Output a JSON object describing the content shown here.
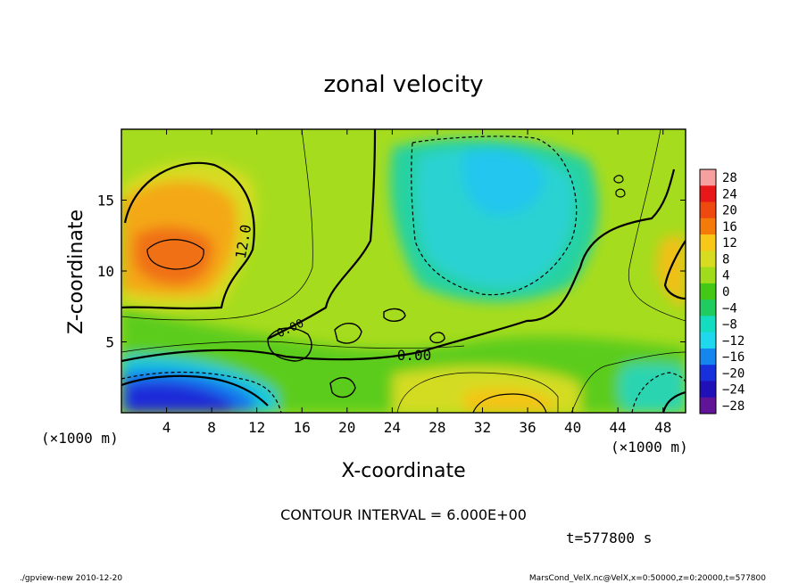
{
  "chart_data": {
    "type": "heatmap",
    "title": "zonal velocity",
    "xlabel": "X-coordinate",
    "ylabel": "Z-coordinate",
    "x_unit_label": "(×1000 m)",
    "y_unit_label": "(×1000 m)",
    "xlim": [
      0,
      50
    ],
    "ylim": [
      0,
      20
    ],
    "x_ticks": [
      4,
      8,
      12,
      16,
      20,
      24,
      28,
      32,
      36,
      40,
      44,
      48
    ],
    "y_ticks": [
      5,
      10,
      15
    ],
    "colorbar": {
      "levels": [
        28,
        24,
        20,
        16,
        12,
        8,
        4,
        0,
        -4,
        -8,
        -12,
        -16,
        -20,
        -24,
        -28
      ],
      "labels": [
        "28",
        "24",
        "20",
        "16",
        "12",
        "8",
        "4",
        "0",
        "−4",
        "−8",
        "−12",
        "−16",
        "−20",
        "−24",
        "−28"
      ],
      "colors": [
        "#f7a0a0",
        "#e81818",
        "#ee4a10",
        "#f47a0a",
        "#f8c818",
        "#d8dc20",
        "#a0dc1c",
        "#44c818",
        "#20cc60",
        "#14dcc0",
        "#20d8ee",
        "#1486ee",
        "#1830dc",
        "#2010b8",
        "#601498"
      ]
    },
    "contour_labels": [
      "12.0",
      "0.00",
      "0.00"
    ],
    "contour_interval_text": "CONTOUR INTERVAL = 6.000E+00",
    "time_text": "t=577800 s",
    "features": [
      {
        "label": "max",
        "x": 5,
        "z": 10.8,
        "value": 20
      },
      {
        "label": "min",
        "x": 7,
        "z": 1.5,
        "value": -16
      },
      {
        "label": "min",
        "x": 34,
        "z": 15.5,
        "value": -10
      },
      {
        "label": "max",
        "x": 34,
        "z": 0.6,
        "value": 13
      }
    ]
  },
  "footer": {
    "left": "./gpview-new 2010-12-20",
    "right": "MarsCond_VelX.nc@VelX,x=0:50000,z=0:20000,t=577800"
  }
}
